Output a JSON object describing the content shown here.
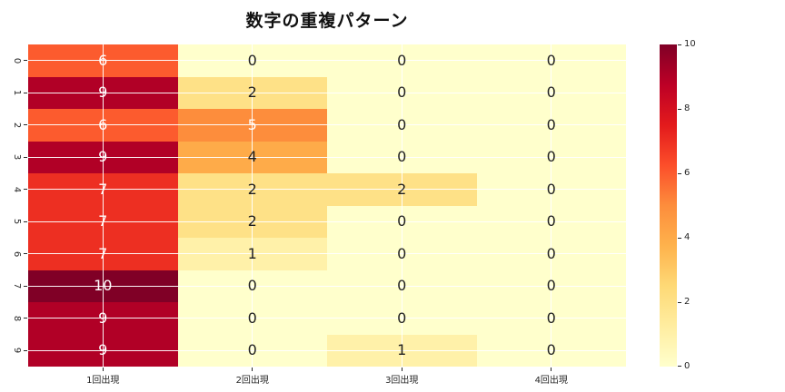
{
  "title": "数字の重複パターン",
  "chart_data": {
    "type": "heatmap",
    "title": "数字の重複パターン",
    "rows": [
      "0",
      "1",
      "2",
      "3",
      "4",
      "5",
      "6",
      "7",
      "8",
      "9"
    ],
    "columns": [
      "1回出現",
      "2回出現",
      "3回出現",
      "4回出現"
    ],
    "values": [
      [
        6,
        0,
        0,
        0
      ],
      [
        9,
        2,
        0,
        0
      ],
      [
        6,
        5,
        0,
        0
      ],
      [
        9,
        4,
        0,
        0
      ],
      [
        7,
        2,
        2,
        0
      ],
      [
        7,
        2,
        0,
        0
      ],
      [
        7,
        1,
        0,
        0
      ],
      [
        10,
        0,
        0,
        0
      ],
      [
        9,
        0,
        0,
        0
      ],
      [
        9,
        0,
        1,
        0
      ]
    ],
    "vmin": 0,
    "vmax": 10,
    "colormap_name": "YlOrRd",
    "colormap_stops": [
      "#ffffcc",
      "#ffeda0",
      "#fed976",
      "#feb24c",
      "#fd8d3c",
      "#fc4e2a",
      "#e31a1c",
      "#bd0026",
      "#800026"
    ],
    "colorbar_ticks": [
      0,
      2,
      4,
      6,
      8,
      10
    ],
    "annotation_white_threshold": 5,
    "annotation_dark_color": "#1f1f1f",
    "annotation_light_color": "#ffffff",
    "gridline_color": "#ffffff",
    "grid": true,
    "legend_position": "right-colorbar",
    "xlabel": "",
    "ylabel": ""
  }
}
